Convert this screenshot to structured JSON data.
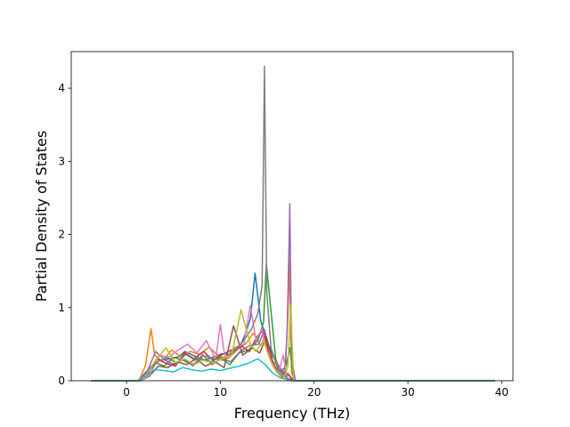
{
  "chart_data": {
    "type": "line",
    "xlabel": "Frequency (THz)",
    "ylabel": "Partial Density of States",
    "xlim": [
      -5.9,
      41.2
    ],
    "ylim": [
      0,
      4.5
    ],
    "x_ticks": [
      0,
      10,
      20,
      30,
      40
    ],
    "y_ticks": [
      0,
      1,
      2,
      3,
      4
    ],
    "grid": false,
    "colors": [
      "#1f77b4",
      "#ff7f0e",
      "#2ca02c",
      "#d62728",
      "#9467bd",
      "#8c564b",
      "#e377c2",
      "#7f7f7f",
      "#bcbd22",
      "#17becf"
    ],
    "series": [
      {
        "color": "#1f77b4",
        "x": [
          -3.8,
          1.2,
          1.8,
          2.8,
          3.6,
          4.6,
          5.6,
          6.2,
          7.2,
          8.3,
          9.4,
          10.2,
          11.1,
          12.0,
          12.6,
          13.2,
          13.7,
          14.3,
          15.1,
          16.0,
          16.8,
          17.2,
          17.6,
          18.0,
          39.3
        ],
        "y": [
          0,
          0,
          0.08,
          0.22,
          0.28,
          0.3,
          0.33,
          0.4,
          0.34,
          0.28,
          0.33,
          0.37,
          0.36,
          0.45,
          0.62,
          0.85,
          1.47,
          0.82,
          0.5,
          0.25,
          0.08,
          0.1,
          0.02,
          0,
          0
        ]
      },
      {
        "color": "#ff7f0e",
        "x": [
          -3.8,
          1.3,
          2.0,
          2.6,
          3.0,
          3.8,
          4.8,
          5.8,
          6.8,
          7.8,
          8.8,
          9.8,
          10.8,
          11.8,
          12.8,
          13.5,
          14.3,
          14.8,
          15.3,
          16.0,
          16.8,
          17.1,
          17.3,
          17.6,
          18.0,
          39.3
        ],
        "y": [
          0,
          0,
          0.2,
          0.71,
          0.35,
          0.27,
          0.42,
          0.33,
          0.4,
          0.36,
          0.46,
          0.34,
          0.3,
          0.42,
          0.52,
          0.65,
          0.48,
          0.62,
          0.3,
          0.22,
          0.05,
          0.6,
          1.78,
          0.1,
          0,
          0
        ]
      },
      {
        "color": "#2ca02c",
        "x": [
          -3.8,
          1.4,
          2.2,
          3.0,
          4.0,
          5.0,
          6.0,
          7.0,
          8.0,
          9.0,
          10.0,
          11.0,
          12.0,
          13.0,
          14.0,
          14.6,
          14.9,
          15.4,
          15.9,
          16.4,
          17.0,
          17.4,
          17.8,
          39.3
        ],
        "y": [
          0,
          0,
          0.12,
          0.25,
          0.2,
          0.32,
          0.28,
          0.22,
          0.3,
          0.26,
          0.32,
          0.22,
          0.38,
          0.42,
          0.55,
          0.8,
          1.6,
          0.95,
          0.3,
          0.12,
          0.2,
          0.45,
          0,
          0
        ]
      },
      {
        "color": "#d62728",
        "x": [
          -3.8,
          1.4,
          2.3,
          3.2,
          4.2,
          5.2,
          6.2,
          7.2,
          8.2,
          9.2,
          10.2,
          11.2,
          12.2,
          13.1,
          13.9,
          14.6,
          15.2,
          16.0,
          16.6,
          17.3,
          17.8,
          39.3
        ],
        "y": [
          0,
          0,
          0.1,
          0.3,
          0.24,
          0.2,
          0.38,
          0.3,
          0.4,
          0.28,
          0.36,
          0.42,
          0.48,
          0.4,
          0.6,
          0.7,
          0.35,
          0.12,
          0.05,
          0.08,
          0,
          0
        ]
      },
      {
        "color": "#9467bd",
        "x": [
          -3.8,
          1.3,
          2.1,
          3.1,
          4.1,
          5.1,
          6.1,
          7.1,
          8.1,
          9.1,
          10.1,
          11.1,
          12.1,
          13.1,
          14.1,
          14.7,
          15.3,
          16.2,
          16.9,
          17.2,
          17.4,
          17.6,
          18.0,
          39.3
        ],
        "y": [
          0,
          0,
          0.1,
          0.4,
          0.28,
          0.22,
          0.3,
          0.2,
          0.36,
          0.22,
          0.3,
          0.26,
          0.4,
          0.48,
          0.5,
          0.7,
          0.4,
          0.2,
          0.1,
          0.9,
          2.42,
          0.3,
          0,
          0
        ]
      },
      {
        "color": "#8c564b",
        "x": [
          -3.8,
          1.5,
          2.4,
          3.4,
          4.4,
          5.4,
          6.4,
          7.4,
          8.4,
          9.4,
          10.4,
          11.4,
          12.4,
          13.4,
          14.2,
          14.9,
          15.6,
          16.3,
          17.0,
          17.5,
          39.3
        ],
        "y": [
          0,
          0,
          0.06,
          0.2,
          0.18,
          0.26,
          0.22,
          0.3,
          0.2,
          0.26,
          0.18,
          0.75,
          0.35,
          0.45,
          0.38,
          0.6,
          0.25,
          0.1,
          0.05,
          0,
          0
        ]
      },
      {
        "color": "#e377c2",
        "x": [
          -3.8,
          1.5,
          2.5,
          3.5,
          4.5,
          5.5,
          6.5,
          7.5,
          8.5,
          9.5,
          10.0,
          10.5,
          11.5,
          12.5,
          13.2,
          13.8,
          14.4,
          15.0,
          15.6,
          16.2,
          16.7,
          17.1,
          17.6,
          39.3
        ],
        "y": [
          0,
          0,
          0.08,
          0.35,
          0.32,
          0.42,
          0.5,
          0.38,
          0.55,
          0.3,
          0.77,
          0.3,
          0.45,
          0.5,
          1.03,
          0.55,
          0.7,
          0.4,
          0.2,
          0.1,
          0.35,
          0.05,
          0,
          0
        ]
      },
      {
        "color": "#7f7f7f",
        "x": [
          -3.8,
          1.4,
          2.3,
          3.3,
          4.3,
          5.3,
          6.3,
          7.3,
          8.3,
          9.3,
          10.3,
          11.3,
          12.3,
          13.3,
          14.0,
          14.45,
          14.7,
          14.95,
          15.4,
          16.1,
          16.8,
          17.3,
          17.7,
          39.3
        ],
        "y": [
          0,
          0,
          0.12,
          0.26,
          0.32,
          0.24,
          0.36,
          0.28,
          0.34,
          0.3,
          0.28,
          0.4,
          0.52,
          0.7,
          0.92,
          1.3,
          4.3,
          1.2,
          0.45,
          0.18,
          0.06,
          0.02,
          0,
          0
        ]
      },
      {
        "color": "#bcbd22",
        "x": [
          -3.8,
          1.4,
          2.2,
          3.2,
          4.2,
          5.2,
          6.2,
          7.2,
          8.2,
          9.2,
          10.2,
          11.2,
          12.2,
          13.2,
          13.8,
          14.6,
          15.3,
          16.0,
          16.8,
          17.2,
          17.5,
          17.8,
          39.3
        ],
        "y": [
          0,
          0,
          0.1,
          0.3,
          0.45,
          0.25,
          0.3,
          0.22,
          0.28,
          0.24,
          0.3,
          0.35,
          0.97,
          0.5,
          0.4,
          0.55,
          0.3,
          0.12,
          0.05,
          0.2,
          1.05,
          0,
          0
        ]
      },
      {
        "color": "#17becf",
        "x": [
          -3.8,
          1.3,
          2.0,
          3.0,
          4.0,
          5.0,
          6.0,
          7.0,
          8.0,
          9.0,
          10.0,
          11.0,
          12.0,
          13.0,
          14.0,
          14.8,
          15.6,
          16.4,
          17.0,
          17.6,
          39.3
        ],
        "y": [
          0,
          0,
          0.06,
          0.15,
          0.14,
          0.12,
          0.18,
          0.15,
          0.13,
          0.16,
          0.14,
          0.17,
          0.2,
          0.24,
          0.3,
          0.22,
          0.1,
          0.04,
          0.02,
          0,
          0
        ]
      }
    ]
  }
}
